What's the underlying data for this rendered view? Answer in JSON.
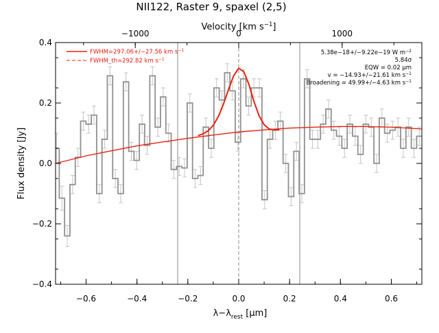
{
  "chart_data": {
    "type": "line",
    "title": "NII122, Raster 9, spaxel (2,5)",
    "xlabel": "λ−λ_rest [μm]",
    "xlabel_main": "λ−λ",
    "xlabel_sub": "rest",
    "xlabel_unit": " [μm]",
    "ylabel": "Flux density [Jy]",
    "top_axis_label": "Velocity [km s⁻¹]",
    "top_axis_label_main": "Velocity [km s",
    "top_axis_label_sup": "−1",
    "top_axis_label_end": "]",
    "xlim": [
      -0.72,
      0.72
    ],
    "ylim": [
      -0.4,
      0.4
    ],
    "x_ticks": [
      -0.6,
      -0.4,
      -0.2,
      0.0,
      0.2,
      0.4,
      0.6
    ],
    "x_tick_labels": [
      "−0.6",
      "−0.4",
      "−0.2",
      "0.0",
      "0.2",
      "0.4",
      "0.6"
    ],
    "y_ticks": [
      -0.4,
      -0.2,
      0.0,
      0.2,
      0.4
    ],
    "y_tick_labels": [
      "−0.4",
      "−0.2",
      "0.0",
      "0.2",
      "0.4"
    ],
    "top_ticks_velocity": [
      -1000,
      0,
      1000
    ],
    "top_tick_labels": [
      "−1000",
      "0",
      "1000"
    ],
    "velocity_per_micron": 2459,
    "vertical_lines": [
      -0.24,
      0.0,
      0.24
    ],
    "legend": [
      {
        "text": "FWHM=297.06+/−27.56 km s",
        "sup": "−1",
        "style": "solid",
        "color": "#e8200f"
      },
      {
        "text": "FWHM_th=292.82 km s",
        "sup": "−1",
        "style": "dashed",
        "color": "#e8200f"
      }
    ],
    "annotations": [
      {
        "text": "5.38e−18+/−9.22e−19 W m",
        "sup": "−2"
      },
      {
        "text": "5.84σ",
        "sup": ""
      },
      {
        "text": "EQW = 0.02 μm",
        "sup": ""
      },
      {
        "text": "v = −14.93+/−21.61 km s",
        "sup": "−1"
      },
      {
        "text": "Broadening = 49.99+/−4.63 km s",
        "sup": "−1"
      }
    ],
    "series": [
      {
        "kind": "spectrum-steps",
        "color": "#909090",
        "bin_width": 0.0209,
        "x": [
          -0.716,
          -0.695,
          -0.674,
          -0.653,
          -0.632,
          -0.611,
          -0.59,
          -0.569,
          -0.548,
          -0.527,
          -0.506,
          -0.485,
          -0.464,
          -0.443,
          -0.422,
          -0.401,
          -0.38,
          -0.36,
          -0.339,
          -0.318,
          -0.297,
          -0.276,
          -0.255,
          -0.234,
          -0.213,
          -0.192,
          -0.171,
          -0.15,
          -0.129,
          -0.108,
          -0.087,
          -0.066,
          -0.045,
          -0.024,
          -0.003,
          0.018,
          0.039,
          0.06,
          0.081,
          0.102,
          0.123,
          0.144,
          0.164,
          0.185,
          0.206,
          0.227,
          0.248,
          0.269,
          0.29,
          0.311,
          0.332,
          0.353,
          0.374,
          0.395,
          0.416,
          0.437,
          0.458,
          0.479,
          0.5,
          0.521,
          0.542,
          0.563,
          0.584,
          0.605,
          0.626,
          0.647,
          0.668,
          0.689,
          0.71
        ],
        "y": [
          0.05,
          -0.115,
          -0.24,
          -0.07,
          0.02,
          0.14,
          0.13,
          0.16,
          -0.1,
          0.08,
          0.29,
          -0.05,
          -0.1,
          0.27,
          0.04,
          0.01,
          0.13,
          0.06,
          0.29,
          0.12,
          0.22,
          0.1,
          -0.02,
          -0.01,
          -0.015,
          0.2,
          -0.05,
          -0.04,
          0.12,
          0.05,
          0.25,
          0.21,
          0.3,
          0.24,
          0.07,
          0.28,
          0.19,
          0.25,
          0.25,
          -0.12,
          0.08,
          0.11,
          0.14,
          0.0,
          -0.11,
          0.04,
          -0.1,
          0.28,
          0.08,
          0.08,
          0.13,
          0.18,
          0.11,
          0.09,
          0.05,
          0.13,
          0.09,
          0.03,
          0.13,
          0.12,
          0.0,
          0.15,
          0.1,
          0.11,
          0.12,
          0.05,
          0.12,
          0.05,
          0.09
        ],
        "error": [
          0.05,
          0.04,
          0.035,
          0.03,
          0.03,
          0.03,
          0.03,
          0.03,
          0.03,
          0.03,
          0.03,
          0.03,
          0.03,
          0.03,
          0.03,
          0.03,
          0.03,
          0.03,
          0.03,
          0.03,
          0.03,
          0.03,
          0.03,
          0.03,
          0.03,
          0.03,
          0.03,
          0.03,
          0.03,
          0.03,
          0.03,
          0.03,
          0.03,
          0.03,
          0.03,
          0.03,
          0.03,
          0.03,
          0.03,
          0.03,
          0.03,
          0.03,
          0.03,
          0.03,
          0.03,
          0.03,
          0.03,
          0.03,
          0.03,
          0.03,
          0.03,
          0.03,
          0.03,
          0.03,
          0.03,
          0.03,
          0.03,
          0.03,
          0.03,
          0.03,
          0.03,
          0.03,
          0.03,
          0.03,
          0.03,
          0.03,
          0.03,
          0.03,
          0.03
        ]
      },
      {
        "kind": "continuum",
        "color": "#e8200f",
        "x": [
          -0.72,
          -0.6,
          -0.5,
          -0.4,
          -0.3,
          -0.2,
          -0.1,
          0.0,
          0.1,
          0.2,
          0.3,
          0.4,
          0.5,
          0.6,
          0.72
        ],
        "y": [
          0.0,
          0.025,
          0.042,
          0.058,
          0.071,
          0.083,
          0.094,
          0.104,
          0.111,
          0.117,
          0.12,
          0.122,
          0.122,
          0.12,
          0.114
        ]
      },
      {
        "kind": "gaussian-fit",
        "color": "#e8200f",
        "x": [
          -0.16,
          -0.14,
          -0.12,
          -0.1,
          -0.08,
          -0.06,
          -0.04,
          -0.02,
          0.0,
          0.02,
          0.04,
          0.06,
          0.08,
          0.1,
          0.12,
          0.14,
          0.16
        ],
        "y": [
          0.092,
          0.098,
          0.108,
          0.126,
          0.155,
          0.196,
          0.245,
          0.29,
          0.315,
          0.304,
          0.262,
          0.205,
          0.158,
          0.128,
          0.114,
          0.111,
          0.112
        ]
      }
    ]
  }
}
